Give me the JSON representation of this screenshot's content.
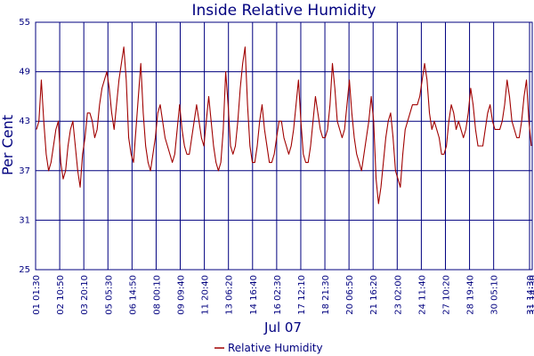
{
  "chart_data": {
    "type": "line",
    "title": "Inside Relative Humidity",
    "ylabel": "Per Cent",
    "xlabel": "Jul 07",
    "ylim": [
      25,
      55
    ],
    "yticks": [
      25,
      31,
      37,
      43,
      49,
      55
    ],
    "grid": true,
    "legend_position": "bottom-center",
    "colors": {
      "series": "#a00000",
      "grid": "#00007f",
      "text": "#00007f"
    },
    "xticks": [
      "01 01:30",
      "02 10:50",
      "03 20:10",
      "05 05:30",
      "06 14:50",
      "08 00:10",
      "09 09:40",
      "11 20:40",
      "13 06:20",
      "14 16:40",
      "16 02:30",
      "17 12:10",
      "18 21:30",
      "20 06:50",
      "21 16:20",
      "23 02:00",
      "24 11:40",
      "27 10:20",
      "28 19:40",
      "30 05:10",
      "31 14:30",
      "31 14:30"
    ],
    "series": [
      {
        "name": "Relative Humidity",
        "y": [
          42,
          43,
          48,
          43,
          39,
          37,
          38,
          40,
          42,
          43,
          38,
          36,
          37,
          40,
          42,
          43,
          40,
          37,
          35,
          39,
          41,
          44,
          44,
          43,
          41,
          42,
          45,
          47,
          48,
          49,
          47,
          44,
          42,
          45,
          48,
          50,
          52,
          48,
          41,
          39,
          38,
          42,
          46,
          50,
          44,
          40,
          38,
          37,
          39,
          41,
          44,
          45,
          43,
          41,
          40,
          39,
          38,
          39,
          42,
          45,
          42,
          40,
          39,
          39,
          41,
          43,
          45,
          43,
          41,
          40,
          43,
          46,
          43,
          40,
          38,
          37,
          38,
          42,
          49,
          45,
          40,
          39,
          40,
          43,
          47,
          50,
          52,
          45,
          40,
          38,
          38,
          40,
          43,
          45,
          42,
          40,
          38,
          38,
          39,
          41,
          43,
          43,
          41,
          40,
          39,
          40,
          42,
          45,
          48,
          43,
          39,
          38,
          38,
          40,
          43,
          46,
          44,
          42,
          41,
          41,
          42,
          45,
          50,
          47,
          43,
          42,
          41,
          42,
          45,
          48,
          44,
          41,
          39,
          38,
          37,
          39,
          41,
          43,
          46,
          43,
          36,
          33,
          35,
          38,
          41,
          43,
          44,
          41,
          37,
          36,
          35,
          39,
          42,
          43,
          44,
          45,
          45,
          45,
          46,
          48,
          50,
          48,
          44,
          42,
          43,
          42,
          41,
          39,
          39,
          40,
          43,
          45,
          44,
          42,
          43,
          42,
          41,
          42,
          44,
          47,
          45,
          42,
          40,
          40,
          40,
          42,
          44,
          45,
          43,
          42,
          42,
          42,
          43,
          45,
          48,
          46,
          43,
          42,
          41,
          41,
          43,
          46,
          48,
          43,
          40
        ]
      }
    ]
  }
}
